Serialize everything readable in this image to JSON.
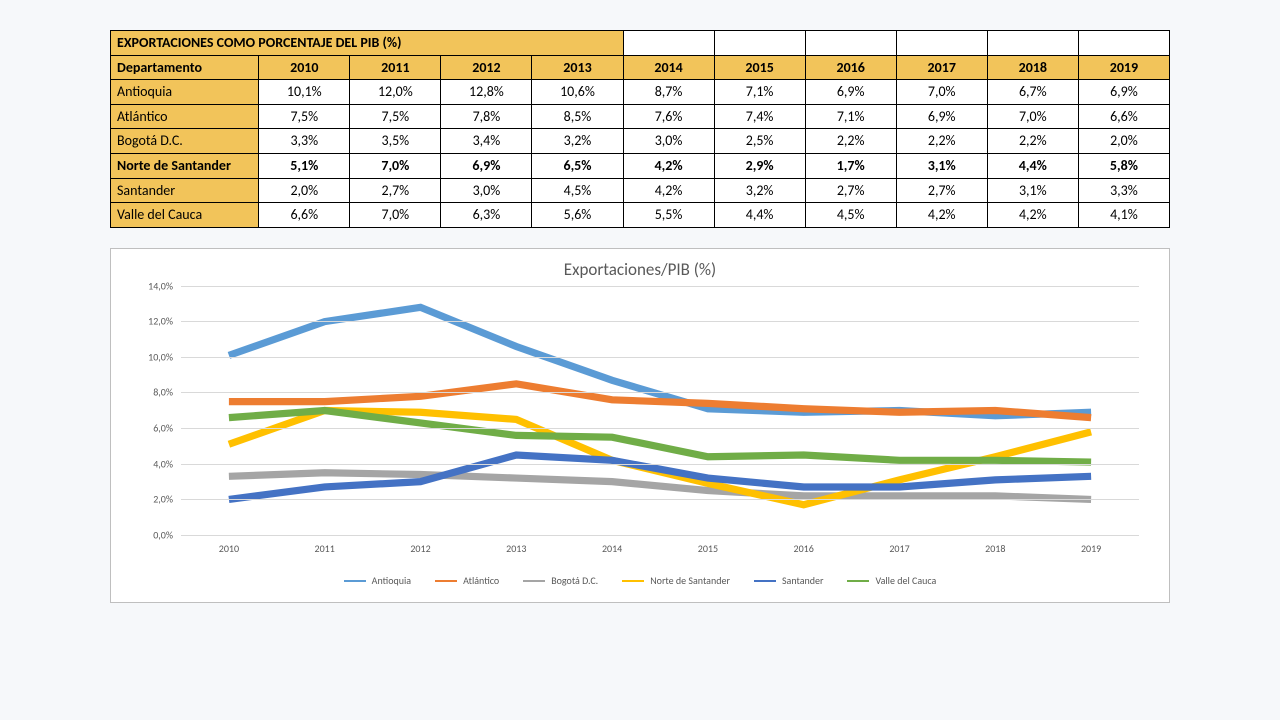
{
  "table": {
    "title": "EXPORTACIONES COMO PORCENTAJE DEL PIB (%)",
    "col_header": "Departamento",
    "years": [
      "2010",
      "2011",
      "2012",
      "2013",
      "2014",
      "2015",
      "2016",
      "2017",
      "2018",
      "2019"
    ],
    "rows": [
      {
        "label": "Antioquia",
        "bold": false,
        "cells": [
          "10,1%",
          "12,0%",
          "12,8%",
          "10,6%",
          "8,7%",
          "7,1%",
          "6,9%",
          "7,0%",
          "6,7%",
          "6,9%"
        ]
      },
      {
        "label": "Atlántico",
        "bold": false,
        "cells": [
          "7,5%",
          "7,5%",
          "7,8%",
          "8,5%",
          "7,6%",
          "7,4%",
          "7,1%",
          "6,9%",
          "7,0%",
          "6,6%"
        ]
      },
      {
        "label": "Bogotá D.C.",
        "bold": false,
        "cells": [
          "3,3%",
          "3,5%",
          "3,4%",
          "3,2%",
          "3,0%",
          "2,5%",
          "2,2%",
          "2,2%",
          "2,2%",
          "2,0%"
        ]
      },
      {
        "label": "Norte de Santander",
        "bold": true,
        "cells": [
          "5,1%",
          "7,0%",
          "6,9%",
          "6,5%",
          "4,2%",
          "2,9%",
          "1,7%",
          "3,1%",
          "4,4%",
          "5,8%"
        ]
      },
      {
        "label": "Santander",
        "bold": false,
        "cells": [
          "2,0%",
          "2,7%",
          "3,0%",
          "4,5%",
          "4,2%",
          "3,2%",
          "2,7%",
          "2,7%",
          "3,1%",
          "3,3%"
        ]
      },
      {
        "label": "Valle del Cauca",
        "bold": false,
        "cells": [
          "6,6%",
          "7,0%",
          "6,3%",
          "5,6%",
          "5,5%",
          "4,4%",
          "4,5%",
          "4,2%",
          "4,2%",
          "4,1%"
        ]
      }
    ],
    "first_col_width_pct": 14,
    "year_col_width_pct": 8.6
  },
  "chart": {
    "type": "line",
    "title": "Exportaciones/PIB (%)",
    "title_color": "#595959",
    "title_fontsize": 17,
    "background_color": "#ffffff",
    "border_color": "#bfbfbf",
    "grid_color": "#d9d9d9",
    "axis_label_color": "#595959",
    "axis_label_fontsize": 10,
    "line_width": 1.8,
    "x_categories": [
      "2010",
      "2011",
      "2012",
      "2013",
      "2014",
      "2015",
      "2016",
      "2017",
      "2018",
      "2019"
    ],
    "y": {
      "min": 0,
      "max": 14,
      "step": 2,
      "tick_format": ",0%"
    },
    "y_ticks": [
      "0,0%",
      "2,0%",
      "4,0%",
      "6,0%",
      "8,0%",
      "10,0%",
      "12,0%",
      "14,0%"
    ],
    "series": [
      {
        "name": "Antioquia",
        "color": "#5B9BD5",
        "values": [
          10.1,
          12.0,
          12.8,
          10.6,
          8.7,
          7.1,
          6.9,
          7.0,
          6.7,
          6.9
        ]
      },
      {
        "name": "Atlántico",
        "color": "#ED7D31",
        "values": [
          7.5,
          7.5,
          7.8,
          8.5,
          7.6,
          7.4,
          7.1,
          6.9,
          7.0,
          6.6
        ]
      },
      {
        "name": "Bogotá D.C.",
        "color": "#A5A5A5",
        "values": [
          3.3,
          3.5,
          3.4,
          3.2,
          3.0,
          2.5,
          2.2,
          2.2,
          2.2,
          2.0
        ]
      },
      {
        "name": "Norte de Santander",
        "color": "#FFC000",
        "values": [
          5.1,
          7.0,
          6.9,
          6.5,
          4.2,
          2.9,
          1.7,
          3.1,
          4.4,
          5.8
        ]
      },
      {
        "name": "Santander",
        "color": "#4472C4",
        "values": [
          2.0,
          2.7,
          3.0,
          4.5,
          4.2,
          3.2,
          2.7,
          2.7,
          3.1,
          3.3
        ]
      },
      {
        "name": "Valle del Cauca",
        "color": "#70AD47",
        "values": [
          6.6,
          7.0,
          6.3,
          5.6,
          5.5,
          4.4,
          4.5,
          4.2,
          4.2,
          4.1
        ]
      }
    ],
    "legend_position": "bottom"
  }
}
